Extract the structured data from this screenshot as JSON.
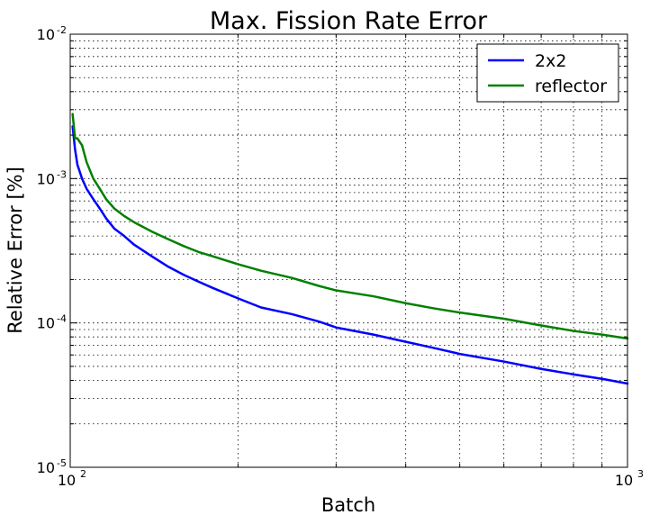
{
  "chart_data": {
    "type": "line",
    "title": "Max. Fission Rate Error",
    "xlabel": "Batch",
    "ylabel": "Relative Error [%]",
    "xscale": "log",
    "yscale": "log",
    "xlim": [
      100,
      1000
    ],
    "ylim": [
      1e-05,
      0.01
    ],
    "grid": true,
    "legend": "top-right",
    "x_ticks": [
      {
        "value": 100,
        "base": "10",
        "exp": "2"
      },
      {
        "value": 1000,
        "base": "10",
        "exp": "3"
      }
    ],
    "y_ticks": [
      {
        "value": 1e-05,
        "base": "10",
        "exp": "-5"
      },
      {
        "value": 0.0001,
        "base": "10",
        "exp": "-4"
      },
      {
        "value": 0.001,
        "base": "10",
        "exp": "-3"
      },
      {
        "value": 0.01,
        "base": "10",
        "exp": "-2"
      }
    ],
    "series": [
      {
        "name": "2x2",
        "color": "#0000ff",
        "points": [
          [
            101,
            0.0023
          ],
          [
            102,
            0.0016
          ],
          [
            103,
            0.00125
          ],
          [
            105,
            0.001
          ],
          [
            107,
            0.00085
          ],
          [
            110,
            0.00072
          ],
          [
            113,
            0.00062
          ],
          [
            116,
            0.00053
          ],
          [
            120,
            0.00045
          ],
          [
            125,
            0.0004
          ],
          [
            130,
            0.00035
          ],
          [
            140,
            0.00029
          ],
          [
            150,
            0.000245
          ],
          [
            160,
            0.000215
          ],
          [
            170,
            0.000193
          ],
          [
            180,
            0.000175
          ],
          [
            200,
            0.000148
          ],
          [
            220,
            0.000128
          ],
          [
            250,
            0.000115
          ],
          [
            280,
            0.000102
          ],
          [
            300,
            9.3e-05
          ],
          [
            350,
            8.3e-05
          ],
          [
            400,
            7.4e-05
          ],
          [
            450,
            6.7e-05
          ],
          [
            500,
            6.1e-05
          ],
          [
            600,
            5.4e-05
          ],
          [
            700,
            4.8e-05
          ],
          [
            800,
            4.4e-05
          ],
          [
            900,
            4.1e-05
          ],
          [
            1000,
            3.8e-05
          ]
        ]
      },
      {
        "name": "reflector",
        "color": "#008000",
        "points": [
          [
            101,
            0.0028
          ],
          [
            102,
            0.0019
          ],
          [
            103,
            0.0019
          ],
          [
            105,
            0.0017
          ],
          [
            107,
            0.0013
          ],
          [
            110,
            0.001
          ],
          [
            113,
            0.00085
          ],
          [
            116,
            0.00072
          ],
          [
            120,
            0.00062
          ],
          [
            125,
            0.00055
          ],
          [
            130,
            0.0005
          ],
          [
            140,
            0.00043
          ],
          [
            150,
            0.00038
          ],
          [
            160,
            0.00034
          ],
          [
            170,
            0.00031
          ],
          [
            180,
            0.00029
          ],
          [
            200,
            0.000255
          ],
          [
            220,
            0.00023
          ],
          [
            250,
            0.000205
          ],
          [
            280,
            0.00018
          ],
          [
            300,
            0.000168
          ],
          [
            350,
            0.000153
          ],
          [
            400,
            0.000137
          ],
          [
            450,
            0.000126
          ],
          [
            500,
            0.000118
          ],
          [
            600,
            0.000107
          ],
          [
            700,
            9.6e-05
          ],
          [
            800,
            8.8e-05
          ],
          [
            900,
            8.3e-05
          ],
          [
            1000,
            7.8e-05
          ]
        ]
      }
    ]
  }
}
